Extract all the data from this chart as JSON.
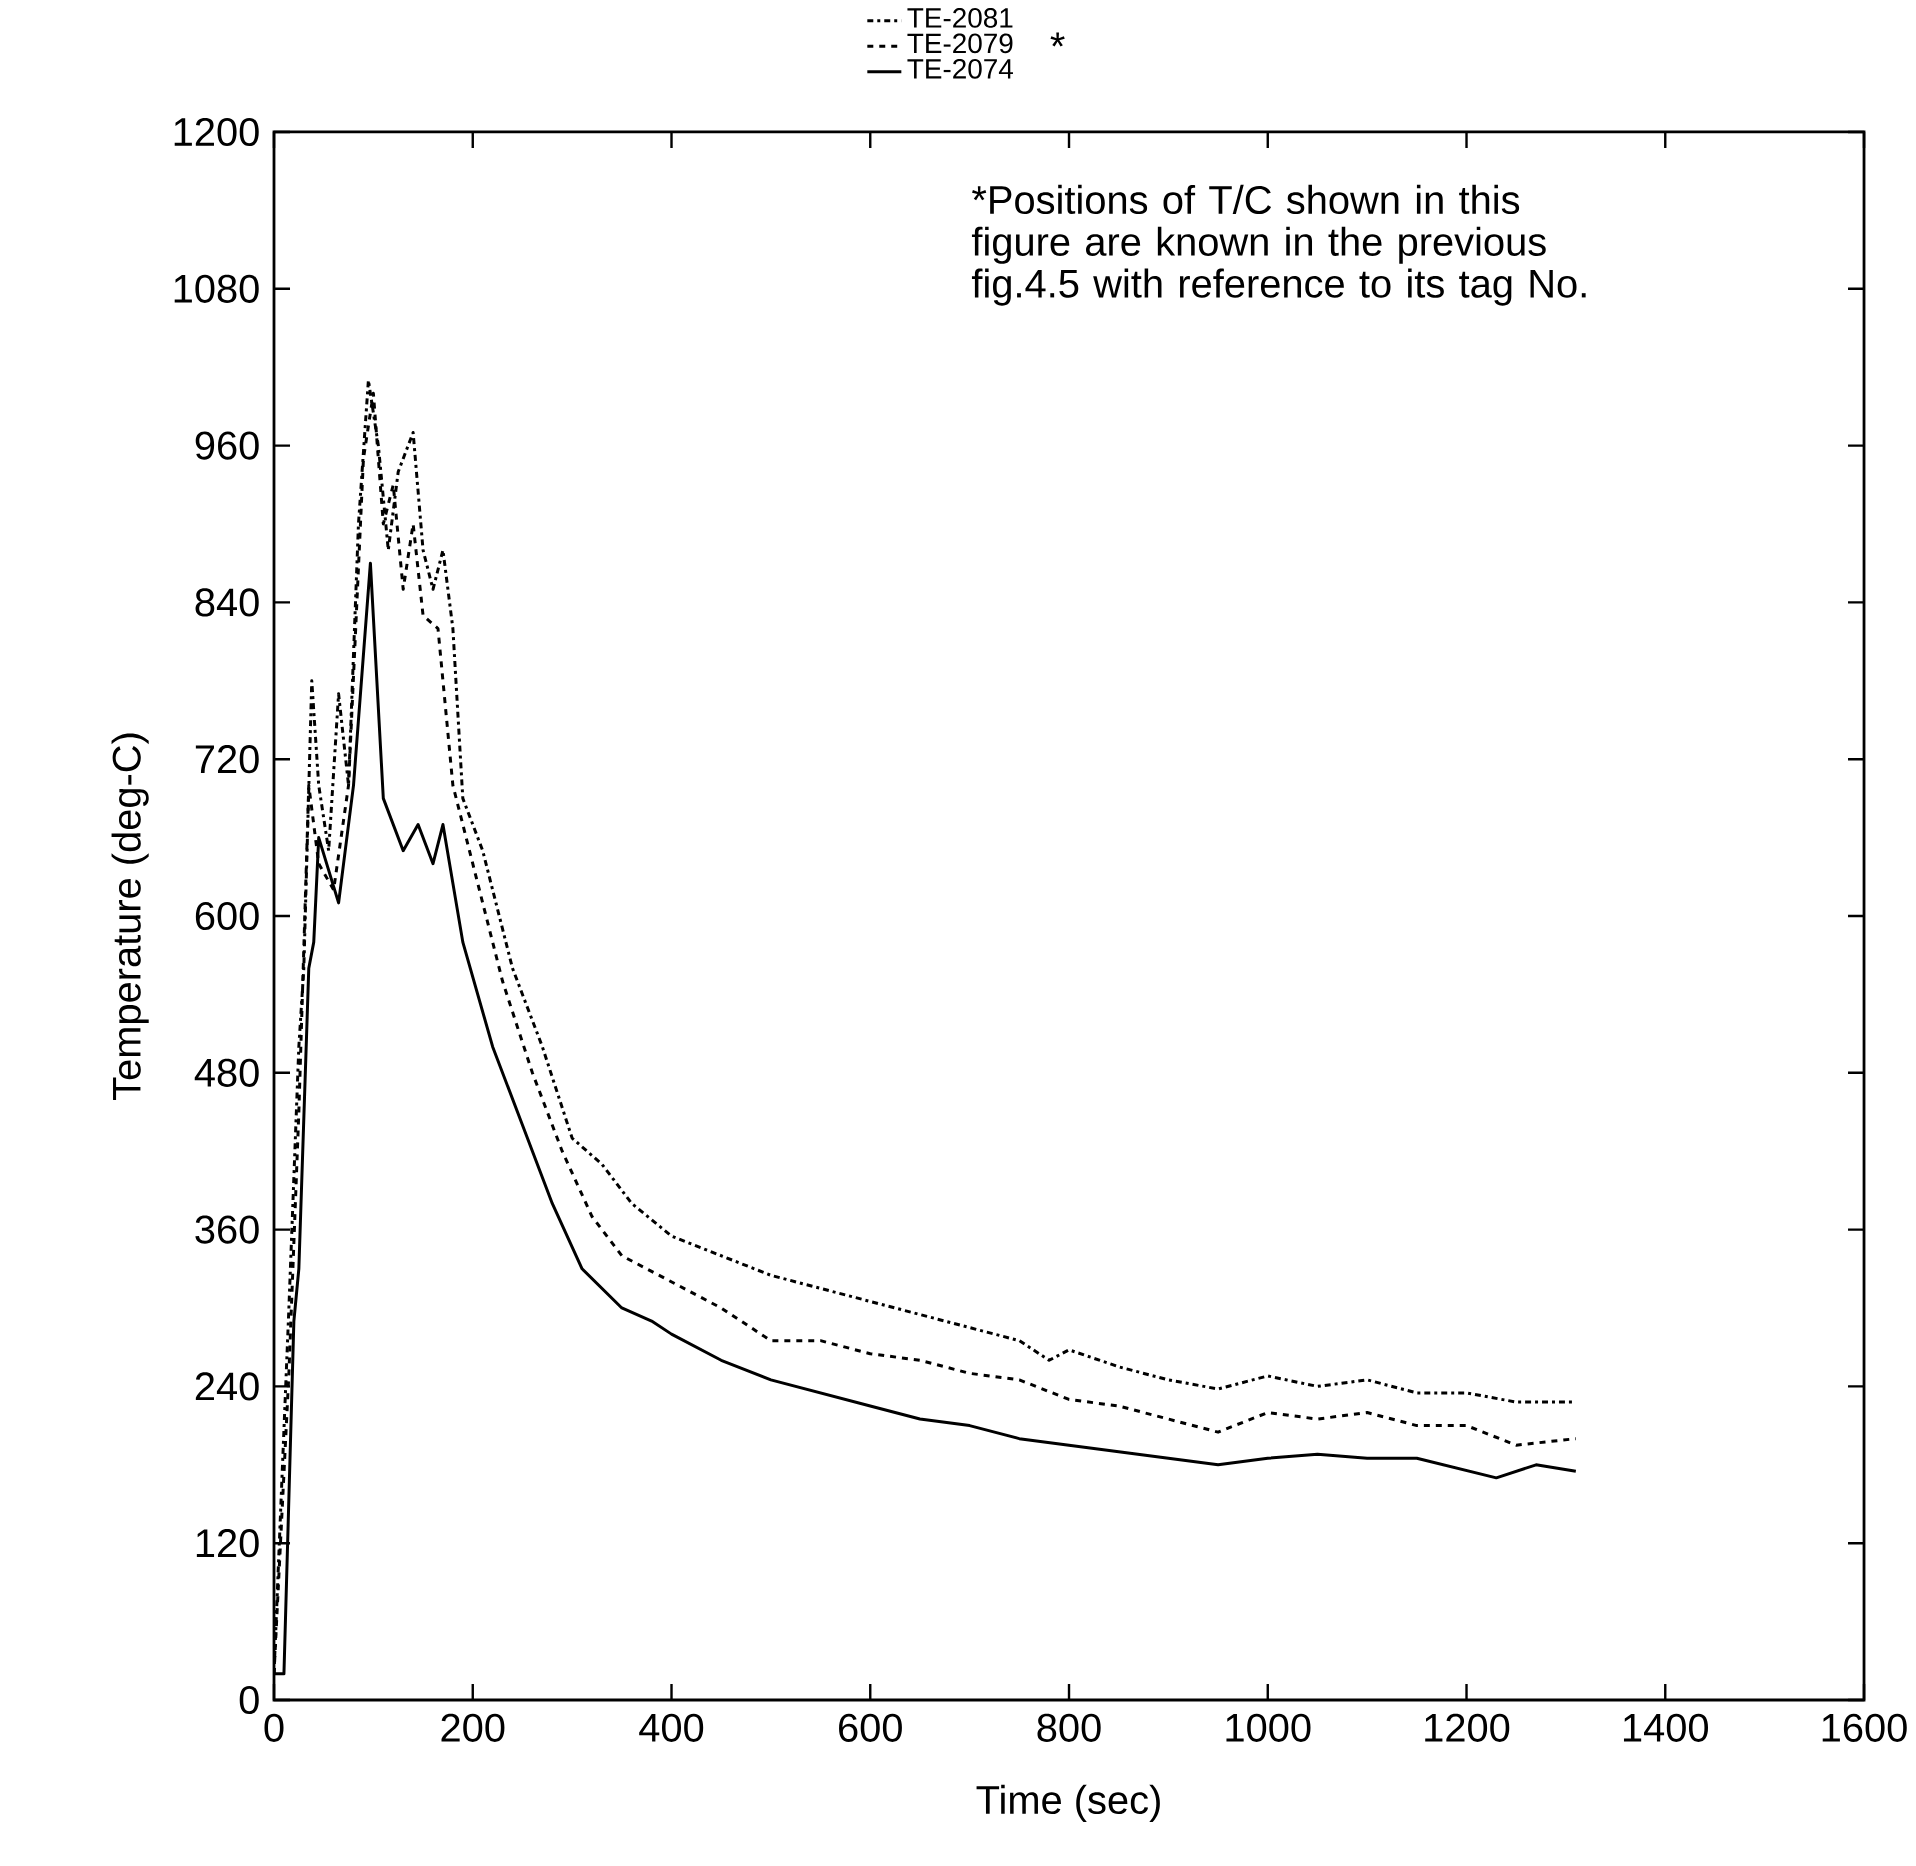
{
  "chart_data": {
    "type": "line",
    "xlabel": "Time (sec)",
    "ylabel": "Temperature (deg-C)",
    "xlim": [
      0,
      1600
    ],
    "xticks": [
      0,
      200,
      400,
      600,
      800,
      1000,
      1200,
      1400,
      1600
    ],
    "ylim": [
      0,
      1200
    ],
    "yticks": [
      0,
      120,
      240,
      360,
      480,
      600,
      720,
      840,
      960,
      1080,
      1200
    ],
    "grid": false,
    "legend": "top",
    "marker": "none",
    "annotations": [
      "*",
      "*Positions of T/C shown in this figure are known in the previous fig.4.5 with reference to its tag No."
    ],
    "series": [
      {
        "name": "TE-2081",
        "color": "#000000",
        "line_style": "dashdot",
        "x": [
          0,
          15,
          25,
          30,
          38,
          45,
          55,
          65,
          75,
          85,
          95,
          105,
          115,
          125,
          140,
          150,
          160,
          170,
          180,
          190,
          210,
          240,
          270,
          300,
          330,
          360,
          400,
          450,
          500,
          550,
          600,
          650,
          700,
          750,
          780,
          800,
          850,
          900,
          950,
          1000,
          1050,
          1100,
          1150,
          1200,
          1250,
          1310
        ],
        "values": [
          20,
          300,
          500,
          560,
          780,
          700,
          650,
          770,
          700,
          900,
          1010,
          960,
          880,
          940,
          970,
          880,
          850,
          880,
          820,
          690,
          650,
          560,
          500,
          430,
          410,
          380,
          355,
          340,
          325,
          315,
          305,
          295,
          285,
          275,
          260,
          268,
          255,
          245,
          238,
          248,
          240,
          245,
          235,
          235,
          228,
          228
        ]
      },
      {
        "name": "TE-2079",
        "color": "#000000",
        "line_style": "dashed",
        "x": [
          0,
          15,
          25,
          35,
          45,
          60,
          75,
          90,
          100,
          110,
          120,
          130,
          140,
          150,
          165,
          180,
          200,
          230,
          260,
          290,
          320,
          350,
          400,
          450,
          500,
          550,
          600,
          650,
          700,
          750,
          800,
          850,
          900,
          950,
          1000,
          1050,
          1100,
          1150,
          1200,
          1250,
          1310
        ],
        "values": [
          20,
          250,
          450,
          700,
          640,
          620,
          700,
          950,
          1000,
          900,
          930,
          850,
          900,
          830,
          820,
          700,
          640,
          550,
          480,
          420,
          370,
          340,
          320,
          300,
          275,
          275,
          265,
          260,
          250,
          245,
          230,
          225,
          215,
          205,
          220,
          215,
          220,
          210,
          210,
          195,
          200
        ]
      },
      {
        "name": "TE-2074",
        "color": "#000000",
        "line_style": "solid",
        "x": [
          0,
          10,
          20,
          25,
          35,
          40,
          45,
          65,
          80,
          97,
          110,
          130,
          145,
          160,
          170,
          190,
          220,
          250,
          280,
          310,
          350,
          380,
          400,
          450,
          500,
          550,
          600,
          650,
          700,
          750,
          800,
          850,
          900,
          950,
          1000,
          1050,
          1100,
          1150,
          1230,
          1270,
          1310
        ],
        "values": [
          20,
          20,
          290,
          330,
          560,
          580,
          660,
          610,
          700,
          870,
          690,
          650,
          670,
          640,
          670,
          580,
          500,
          440,
          380,
          330,
          300,
          290,
          280,
          260,
          245,
          235,
          225,
          215,
          210,
          200,
          195,
          190,
          185,
          180,
          185,
          188,
          185,
          185,
          170,
          180,
          175
        ]
      }
    ]
  }
}
